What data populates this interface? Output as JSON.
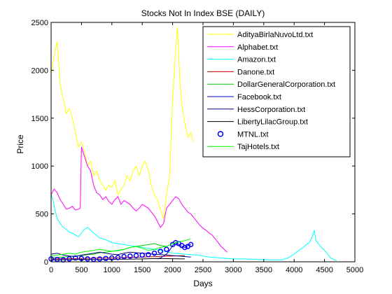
{
  "chart_data": {
    "type": "line",
    "title": "Stocks Not In Index BSE (DAILY)",
    "xlabel": "Days",
    "ylabel": "Price",
    "xlim": [
      0,
      5000
    ],
    "ylim": [
      0,
      2500
    ],
    "xticks": [
      0,
      500,
      1000,
      1500,
      2000,
      2500,
      3000,
      3500,
      4000,
      4500,
      5000
    ],
    "yticks": [
      0,
      500,
      1000,
      1500,
      2000,
      2500
    ],
    "grid": false,
    "legend_position": "top-right",
    "series": [
      {
        "name": "AdityaBirlaNuvoLtd.txt",
        "color": "#ffff00",
        "marker": "line",
        "x": [
          0,
          50,
          100,
          150,
          200,
          250,
          300,
          350,
          400,
          450,
          500,
          550,
          600,
          650,
          700,
          750,
          800,
          850,
          900,
          950,
          1000,
          1050,
          1100,
          1150,
          1200,
          1250,
          1300,
          1350,
          1400,
          1450,
          1500,
          1550,
          1600,
          1650,
          1700,
          1750,
          1800,
          1850,
          1900,
          1950,
          2000,
          2050,
          2080,
          2120,
          2150,
          2200,
          2250,
          2300,
          2340
        ],
        "y": [
          1950,
          2150,
          2300,
          1850,
          1700,
          1550,
          1600,
          1500,
          1350,
          1200,
          1250,
          1150,
          1000,
          1050,
          900,
          950,
          850,
          800,
          750,
          800,
          780,
          850,
          700,
          750,
          800,
          900,
          850,
          950,
          1000,
          900,
          1000,
          1050,
          950,
          800,
          700,
          650,
          550,
          450,
          700,
          900,
          1700,
          2200,
          2450,
          1900,
          1650,
          1450,
          1300,
          1350,
          1250
        ]
      },
      {
        "name": "Alphabet.txt",
        "color": "#ff00ff",
        "marker": "line",
        "x": [
          0,
          50,
          100,
          150,
          200,
          250,
          300,
          350,
          400,
          450,
          480,
          500,
          550,
          600,
          650,
          700,
          750,
          800,
          850,
          900,
          950,
          1000,
          1050,
          1100,
          1150,
          1200,
          1250,
          1300,
          1350,
          1400,
          1450,
          1500,
          1550,
          1600,
          1650,
          1700,
          1750,
          1800,
          1850,
          1900,
          1950,
          2000,
          2050,
          2100,
          2150,
          2200,
          2250,
          2300,
          2350,
          2400,
          2450,
          2500,
          2550,
          2600,
          2650,
          2700,
          2750,
          2800,
          2850,
          2900
        ],
        "y": [
          700,
          760,
          720,
          650,
          600,
          550,
          560,
          580,
          540,
          550,
          560,
          1200,
          1100,
          1000,
          950,
          800,
          720,
          700,
          650,
          680,
          630,
          600,
          650,
          680,
          600,
          640,
          620,
          600,
          560,
          530,
          560,
          600,
          580,
          560,
          520,
          480,
          420,
          360,
          400,
          560,
          600,
          640,
          680,
          660,
          600,
          560,
          520,
          500,
          460,
          420,
          380,
          350,
          330,
          300,
          280,
          240,
          200,
          160,
          130,
          100
        ]
      },
      {
        "name": "Amazon.txt",
        "color": "#00ffff",
        "marker": "line",
        "x": [
          0,
          30,
          60,
          100,
          150,
          200,
          250,
          300,
          350,
          400,
          450,
          500,
          550,
          600,
          700,
          800,
          900,
          1000,
          1200,
          1400,
          1600,
          1800,
          2000,
          2200,
          2400,
          2600,
          2800,
          3000,
          3200,
          3400,
          3600,
          3800,
          3900,
          4000,
          4100,
          4150,
          4200,
          4250,
          4300,
          4330,
          4360,
          4400,
          4450,
          4500,
          4550,
          4600,
          4650,
          4700
        ],
        "y": [
          700,
          650,
          550,
          450,
          400,
          360,
          340,
          310,
          300,
          280,
          260,
          300,
          340,
          360,
          300,
          250,
          230,
          200,
          180,
          160,
          140,
          120,
          90,
          80,
          70,
          50,
          40,
          30,
          30,
          25,
          20,
          20,
          40,
          80,
          130,
          150,
          180,
          200,
          260,
          330,
          220,
          190,
          150,
          120,
          80,
          40,
          25,
          10
        ]
      },
      {
        "name": "Danone.txt",
        "color": "#cc0000",
        "marker": "line",
        "x": [
          0,
          250,
          500,
          750,
          1000,
          1250,
          1500,
          1750,
          2000,
          2200
        ],
        "y": [
          30,
          32,
          35,
          38,
          40,
          45,
          50,
          55,
          60,
          65
        ]
      },
      {
        "name": "DollarGeneralCorporation.txt",
        "color": "#00cc00",
        "marker": "line",
        "x": [
          0,
          100,
          200,
          300,
          400,
          500,
          600,
          700,
          800,
          900,
          1000,
          1100,
          1200,
          1300,
          1400,
          1500,
          1600,
          1700,
          1800,
          1900
        ],
        "y": [
          40,
          45,
          50,
          55,
          60,
          65,
          75,
          80,
          95,
          100,
          110,
          120,
          130,
          150,
          160,
          170,
          180,
          190,
          170,
          160
        ]
      },
      {
        "name": "Facebook.txt",
        "color": "#0000cc",
        "marker": "line",
        "x": [
          1750,
          1800,
          1850,
          1900,
          1950,
          2000,
          2050,
          2100,
          2150,
          2200,
          2250,
          2300
        ],
        "y": [
          30,
          40,
          60,
          80,
          120,
          170,
          200,
          180,
          160,
          150,
          170,
          180
        ]
      },
      {
        "name": "HessCorporation.txt",
        "color": "#000080",
        "marker": "line",
        "x": [
          0,
          100,
          200,
          300,
          400,
          500,
          600,
          700,
          800,
          900,
          1000,
          1100,
          1200,
          1300,
          1400,
          1500,
          1600,
          1700,
          1800,
          1900,
          2000,
          2100,
          2200,
          2300
        ],
        "y": [
          80,
          90,
          70,
          60,
          55,
          70,
          80,
          90,
          100,
          90,
          80,
          75,
          90,
          100,
          95,
          90,
          85,
          80,
          75,
          70,
          65,
          60,
          55,
          50
        ]
      },
      {
        "name": "LibertyLilacGroup.txt",
        "color": "#000000",
        "marker": "line",
        "x": [
          0,
          250,
          500,
          750,
          1000,
          1250,
          1500,
          1750,
          2000,
          2200
        ],
        "y": [
          20,
          22,
          25,
          24,
          26,
          28,
          30,
          35,
          32,
          30
        ]
      },
      {
        "name": "MTNL.txt",
        "color": "#0000ff",
        "marker": "circle",
        "x": [
          0,
          100,
          200,
          300,
          400,
          500,
          600,
          700,
          800,
          900,
          1000,
          1100,
          1200,
          1300,
          1400,
          1500,
          1600,
          1700,
          1800,
          1900,
          2000,
          2050,
          2100,
          2150,
          2200,
          2250,
          2300
        ],
        "y": [
          30,
          25,
          20,
          30,
          40,
          35,
          30,
          25,
          30,
          35,
          40,
          45,
          55,
          60,
          65,
          70,
          75,
          90,
          110,
          130,
          180,
          200,
          190,
          170,
          150,
          160,
          180
        ]
      },
      {
        "name": "TajHotels.txt",
        "color": "#00ff00",
        "marker": "line",
        "x": [
          0,
          100,
          200,
          300,
          400,
          500,
          600,
          700,
          800,
          900,
          1000,
          1100,
          1200,
          1300,
          1400,
          1500,
          1600,
          1700,
          1800,
          1900,
          2000,
          2100,
          2200,
          2300
        ],
        "y": [
          60,
          70,
          80,
          90,
          80,
          100,
          110,
          120,
          130,
          120,
          110,
          115,
          130,
          150,
          160,
          140,
          120,
          130,
          150,
          160,
          190,
          210,
          220,
          240
        ]
      }
    ]
  }
}
